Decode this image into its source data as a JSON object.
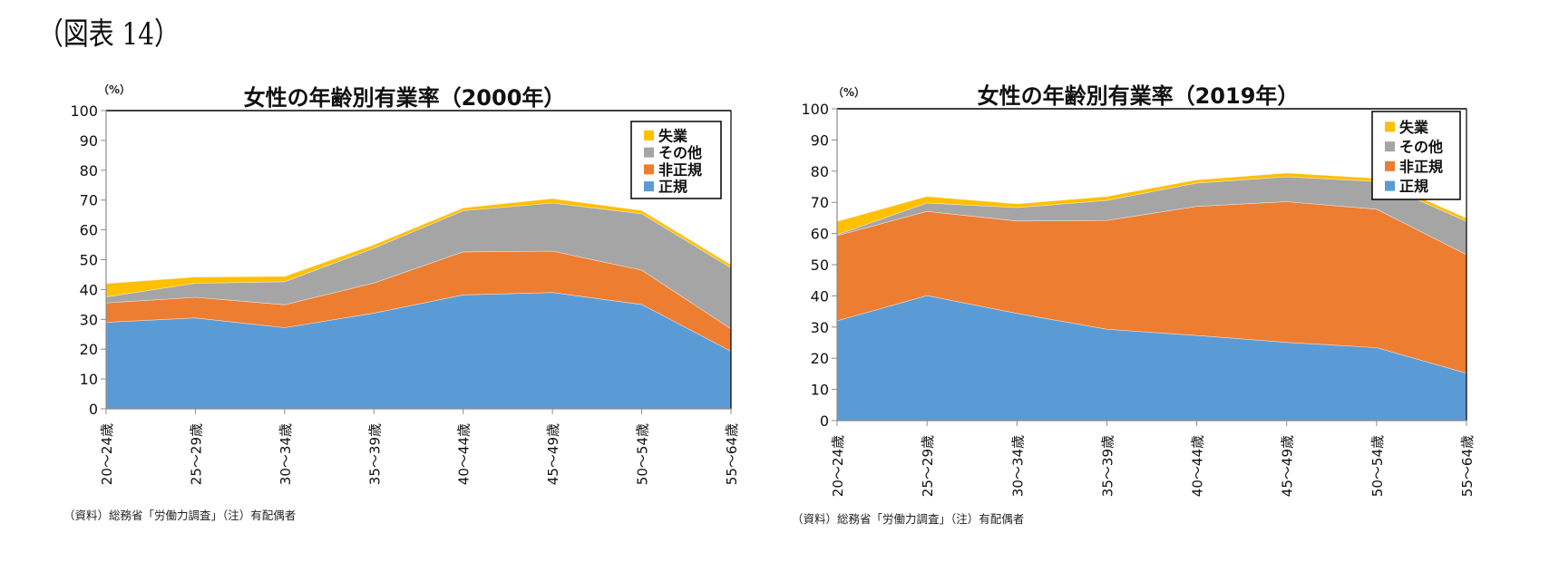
{
  "figure_label": "（図表 14）",
  "charts": [
    {
      "id": "2000",
      "unit_label": "（%）",
      "footnote": "（資料）総務省「労働力調査」（注）有配偶者"
    },
    {
      "id": "2019",
      "unit_label": "（%）",
      "footnote": "（資料）総務省「労働力調査」（注）有配偶者"
    }
  ],
  "chart_data": [
    {
      "type": "area",
      "stacked": true,
      "title": "女性の年齢別有業率（2000年）",
      "xlabel": "",
      "ylabel": "（%）",
      "ylim": [
        0,
        100
      ],
      "yticks": [
        0,
        10,
        20,
        30,
        40,
        50,
        60,
        70,
        80,
        90,
        100
      ],
      "grid": false,
      "legend_position": "top-right",
      "categories": [
        "20～24歳",
        "25～29歳",
        "30～34歳",
        "35～39歳",
        "40～44歳",
        "45～49歳",
        "50～54歳",
        "55～64歳"
      ],
      "series": [
        {
          "name": "正規",
          "color": "#5B9BD5",
          "values": [
            29.0,
            30.5,
            27.2,
            32.1,
            38.2,
            39.0,
            35.0,
            19.3
          ]
        },
        {
          "name": "非正規",
          "color": "#ED7D31",
          "values": [
            6.5,
            6.9,
            7.7,
            10.1,
            14.4,
            13.9,
            11.5,
            7.5
          ]
        },
        {
          "name": "その他",
          "color": "#A5A5A5",
          "values": [
            2.0,
            4.7,
            7.7,
            11.7,
            13.8,
            16.1,
            18.9,
            20.5
          ]
        },
        {
          "name": "失業",
          "color": "#FFC000",
          "values": [
            4.5,
            2.1,
            1.8,
            1.1,
            1.0,
            1.5,
            1.1,
            1.0
          ]
        }
      ],
      "legend_order": [
        "失業",
        "その他",
        "非正規",
        "正規"
      ]
    },
    {
      "type": "area",
      "stacked": true,
      "title": "女性の年齢別有業率（2019年）",
      "xlabel": "",
      "ylabel": "（%）",
      "ylim": [
        0,
        100
      ],
      "yticks": [
        0,
        10,
        20,
        30,
        40,
        50,
        60,
        70,
        80,
        90,
        100
      ],
      "grid": false,
      "legend_position": "top-right",
      "categories": [
        "20～24歳",
        "25～29歳",
        "30～34歳",
        "35～39歳",
        "40～44歳",
        "45～49歳",
        "50～54歳",
        "55～64歳"
      ],
      "series": [
        {
          "name": "正規",
          "color": "#5B9BD5",
          "values": [
            32.0,
            40.1,
            34.4,
            29.3,
            27.3,
            25.1,
            23.4,
            15.2
          ]
        },
        {
          "name": "非正規",
          "color": "#ED7D31",
          "values": [
            27.3,
            27.0,
            29.6,
            34.9,
            41.4,
            45.1,
            44.4,
            38.0
          ]
        },
        {
          "name": "その他",
          "color": "#A5A5A5",
          "values": [
            0.3,
            2.7,
            4.3,
            6.4,
            7.5,
            8.0,
            8.9,
            10.7
          ]
        },
        {
          "name": "失業",
          "color": "#FFC000",
          "values": [
            4.3,
            2.1,
            1.2,
            1.3,
            1.0,
            1.2,
            1.0,
            1.0
          ]
        }
      ],
      "legend_order": [
        "失業",
        "その他",
        "非正規",
        "正規"
      ]
    }
  ]
}
